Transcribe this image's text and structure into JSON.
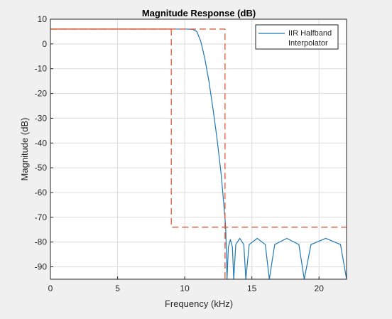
{
  "chart_data": {
    "type": "line",
    "title": "Magnitude Response (dB)",
    "xlabel": "Frequency (kHz)",
    "ylabel": "Magnitude (dB)",
    "xlim": [
      0,
      22.05
    ],
    "ylim": [
      -95,
      10
    ],
    "xticks": [
      0,
      5,
      10,
      15,
      20
    ],
    "yticks": [
      10,
      0,
      -10,
      -20,
      -30,
      -40,
      -50,
      -60,
      -70,
      -80,
      -90
    ],
    "grid": true,
    "legend": {
      "position": "top-right",
      "entries": [
        "IIR Halfband",
        "Interpolator"
      ]
    },
    "colors": {
      "response": "#1f77b4",
      "mask": "#e05a3a",
      "grid": "#dcdcdc",
      "axes_bg": "#ffffff",
      "figure_bg": "#f0f0f0"
    },
    "series": [
      {
        "name": "IIR Halfband Interpolator",
        "style": "solid",
        "x": [
          0,
          8,
          10.2,
          10.6,
          10.9,
          11.2,
          11.5,
          11.8,
          12.1,
          12.4,
          12.7,
          12.9,
          13.05,
          13.15
        ],
        "y": [
          6,
          6,
          6,
          5.9,
          5,
          1,
          -6,
          -15,
          -26,
          -38,
          -52,
          -64,
          -74,
          -95
        ]
      },
      {
        "name": "stopband-lobe-1",
        "style": "solid",
        "x": [
          13.15,
          13.25,
          13.4,
          13.55,
          13.65
        ],
        "y": [
          -95,
          -82,
          -79,
          -82,
          -95
        ]
      },
      {
        "name": "stopband-lobe-2",
        "style": "solid",
        "x": [
          13.65,
          13.8,
          14.1,
          14.4,
          14.55
        ],
        "y": [
          -95,
          -81,
          -78.5,
          -81,
          -95
        ]
      },
      {
        "name": "stopband-lobe-3",
        "style": "solid",
        "x": [
          14.55,
          14.8,
          15.4,
          16.0,
          16.3
        ],
        "y": [
          -95,
          -81,
          -78.5,
          -81,
          -95
        ]
      },
      {
        "name": "stopband-lobe-4",
        "style": "solid",
        "x": [
          16.3,
          16.7,
          17.6,
          18.5,
          18.9
        ],
        "y": [
          -95,
          -81,
          -78.5,
          -81,
          -95
        ]
      },
      {
        "name": "stopband-lobe-5",
        "style": "solid",
        "x": [
          18.9,
          19.4,
          20.5,
          21.6,
          22.05
        ],
        "y": [
          -95,
          -81,
          -78.5,
          -81,
          -95
        ]
      },
      {
        "name": "mask-upper",
        "style": "dashed",
        "x": [
          0,
          13.0,
          13.0
        ],
        "y": [
          6,
          6,
          -95
        ]
      },
      {
        "name": "mask-lower",
        "style": "dashed",
        "x": [
          9.0,
          9.0,
          22.05
        ],
        "y": [
          6,
          -74,
          -74
        ]
      },
      {
        "name": "passband-line",
        "style": "solid-mask",
        "x": [
          0,
          9.0
        ],
        "y": [
          6,
          6
        ]
      }
    ]
  }
}
